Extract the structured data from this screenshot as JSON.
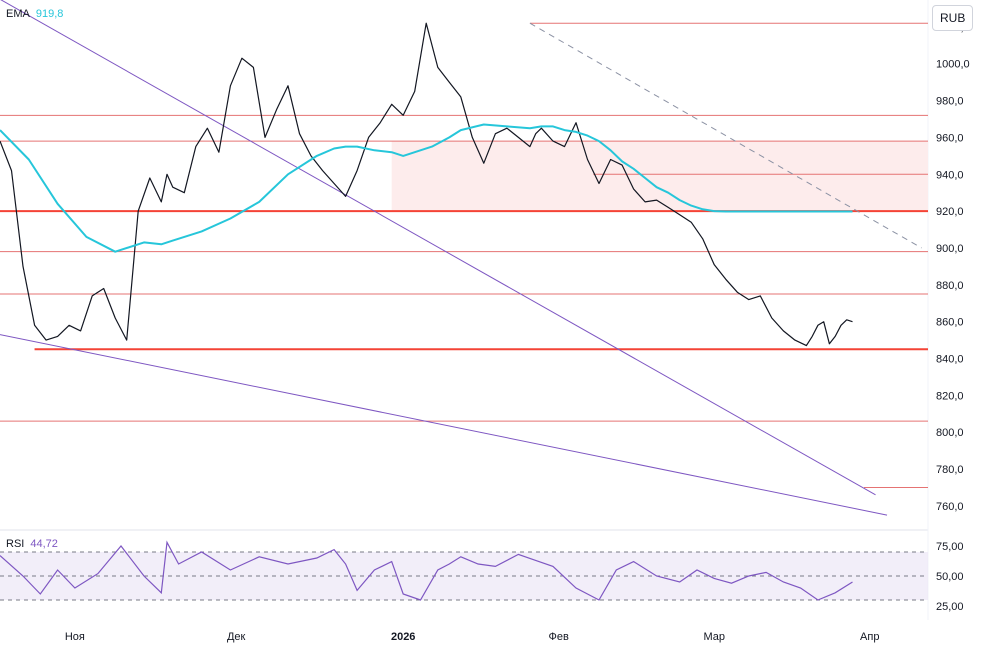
{
  "currency": "RUB",
  "ema_legend": {
    "label": "EMA",
    "value": "919,8",
    "color": "#26c6da"
  },
  "rsi_legend": {
    "label": "RSI",
    "value": "44,72",
    "color": "#7e57c2"
  },
  "chart_data": {
    "type": "line",
    "price_axis": {
      "ylim": [
        748,
        1027
      ],
      "ticks": [
        1020,
        1000,
        980,
        960,
        940,
        920,
        900,
        880,
        860,
        840,
        820,
        800,
        780,
        760
      ],
      "tick_labels": [
        "1020,0",
        "1000,0",
        "980,0",
        "960,0",
        "940,0",
        "920,0",
        "900,0",
        "880,0",
        "860,0",
        "840,0",
        "820,0",
        "800,0",
        "780,0",
        "760,0"
      ]
    },
    "rsi_axis": {
      "ylim": [
        20,
        80
      ],
      "ticks": [
        75,
        50,
        25
      ],
      "tick_labels": [
        "75,00",
        "50,00",
        "25,00"
      ],
      "band": [
        30,
        70
      ]
    },
    "x_axis": {
      "range": [
        0,
        150
      ],
      "ticks": [
        13,
        41,
        70,
        97,
        124,
        151
      ],
      "tick_labels": [
        "Ноя",
        "Дек",
        "2026",
        "Фев",
        "Мар",
        "Апр"
      ],
      "bold": [
        false,
        false,
        true,
        false,
        false,
        false
      ]
    },
    "horizontal_levels": [
      {
        "y": 1022,
        "color": "#e57373",
        "width": 1,
        "x_from": 92
      },
      {
        "y": 972,
        "color": "#e57373",
        "width": 1
      },
      {
        "y": 958,
        "color": "#e57373",
        "width": 1
      },
      {
        "y": 940,
        "color": "#e57373",
        "width": 1,
        "x_from": 103
      },
      {
        "y": 920,
        "color": "#f44336",
        "width": 2
      },
      {
        "y": 898,
        "color": "#e57373",
        "width": 1
      },
      {
        "y": 875,
        "color": "#e57373",
        "width": 1
      },
      {
        "y": 845,
        "color": "#f44336",
        "width": 2,
        "x_from": 6
      },
      {
        "y": 806,
        "color": "#e57373",
        "width": 1
      },
      {
        "y": 770,
        "color": "#e57373",
        "width": 1,
        "x_from": 150
      }
    ],
    "shaded_zone": {
      "x": [
        68,
        176
      ],
      "y": [
        920,
        958
      ],
      "color": "#fdecec"
    },
    "trend_lines": [
      {
        "points": [
          [
            0,
            1035
          ],
          [
            152,
            766
          ]
        ],
        "color": "#7e57c2",
        "dash": false
      },
      {
        "points": [
          [
            0,
            853
          ],
          [
            154,
            755
          ]
        ],
        "color": "#7e57c2",
        "dash": false
      },
      {
        "points": [
          [
            92,
            1022
          ],
          [
            160,
            900
          ]
        ],
        "color": "#8c92a4",
        "dash": true
      }
    ],
    "series": [
      {
        "name": "Close",
        "color": "#131722",
        "x": [
          0,
          2,
          4,
          6,
          8,
          10,
          12,
          14,
          16,
          18,
          20,
          22,
          24,
          26,
          28,
          29,
          30,
          32,
          34,
          36,
          38,
          40,
          42,
          44,
          46,
          48,
          50,
          52,
          54,
          56,
          58,
          60,
          62,
          64,
          66,
          68,
          70,
          72,
          74,
          76,
          78,
          80,
          82,
          84,
          86,
          88,
          90,
          92,
          93,
          94,
          96,
          98,
          100,
          102,
          104,
          106,
          108,
          110,
          112,
          114,
          116,
          118,
          120,
          122,
          124,
          126,
          128,
          130,
          132,
          134,
          136,
          138,
          140,
          141,
          142,
          143,
          144,
          145,
          146,
          147,
          148
        ],
        "y": [
          958,
          942,
          890,
          858,
          850,
          852,
          858,
          855,
          874,
          878,
          862,
          850,
          920,
          938,
          925,
          940,
          933,
          930,
          955,
          965,
          952,
          988,
          1003,
          998,
          960,
          975,
          988,
          962,
          950,
          942,
          935,
          928,
          942,
          960,
          968,
          978,
          972,
          985,
          1022,
          998,
          990,
          982,
          960,
          946,
          962,
          965,
          960,
          955,
          962,
          965,
          958,
          955,
          968,
          948,
          935,
          948,
          945,
          932,
          925,
          926,
          922,
          918,
          914,
          905,
          891,
          883,
          876,
          872,
          874,
          862,
          855,
          850,
          847,
          852,
          858,
          860,
          848,
          852,
          858,
          861,
          860
        ]
      },
      {
        "name": "EMA",
        "color": "#26c6da",
        "x": [
          0,
          5,
          10,
          15,
          20,
          25,
          28,
          30,
          35,
          40,
          45,
          50,
          55,
          58,
          60,
          62,
          65,
          68,
          70,
          72,
          75,
          78,
          80,
          84,
          88,
          92,
          94,
          96,
          98,
          100,
          102,
          104,
          106,
          108,
          110,
          112,
          114,
          116,
          118,
          120,
          122,
          124,
          126,
          128,
          130,
          132,
          134,
          136,
          138,
          140,
          143,
          146,
          147,
          148
        ],
        "y": [
          964,
          948,
          924,
          906,
          898,
          903,
          902,
          904,
          909,
          916,
          925,
          940,
          950,
          954,
          955,
          955,
          953,
          952,
          950,
          952,
          955,
          960,
          964,
          967,
          966,
          965,
          966,
          966,
          964,
          963,
          961,
          958,
          953,
          947,
          943,
          938,
          933,
          930,
          926,
          923,
          921,
          920,
          919.8,
          919.8,
          919.8,
          919.8,
          919.8,
          919.8,
          919.8,
          919.8,
          919.8,
          919.8,
          919.8,
          919.8
        ]
      },
      {
        "name": "RSI",
        "color": "#7e57c2",
        "x": [
          0,
          4,
          7,
          10,
          13,
          17,
          21,
          25,
          28,
          29,
          31,
          35,
          40,
          45,
          50,
          55,
          58,
          60,
          62,
          65,
          68,
          70,
          73,
          76,
          78,
          80,
          83,
          86,
          90,
          93,
          96,
          100,
          104,
          107,
          110,
          114,
          118,
          121,
          124,
          127,
          130,
          133,
          136,
          139,
          142,
          145,
          148
        ],
        "y": [
          67,
          50,
          35,
          55,
          40,
          52,
          75,
          50,
          36,
          78,
          60,
          70,
          55,
          66,
          60,
          65,
          72,
          60,
          38,
          55,
          62,
          35,
          30,
          55,
          60,
          66,
          60,
          58,
          68,
          63,
          58,
          40,
          30,
          55,
          62,
          50,
          45,
          55,
          48,
          44,
          50,
          53,
          45,
          40,
          30,
          36,
          45
        ]
      }
    ]
  }
}
